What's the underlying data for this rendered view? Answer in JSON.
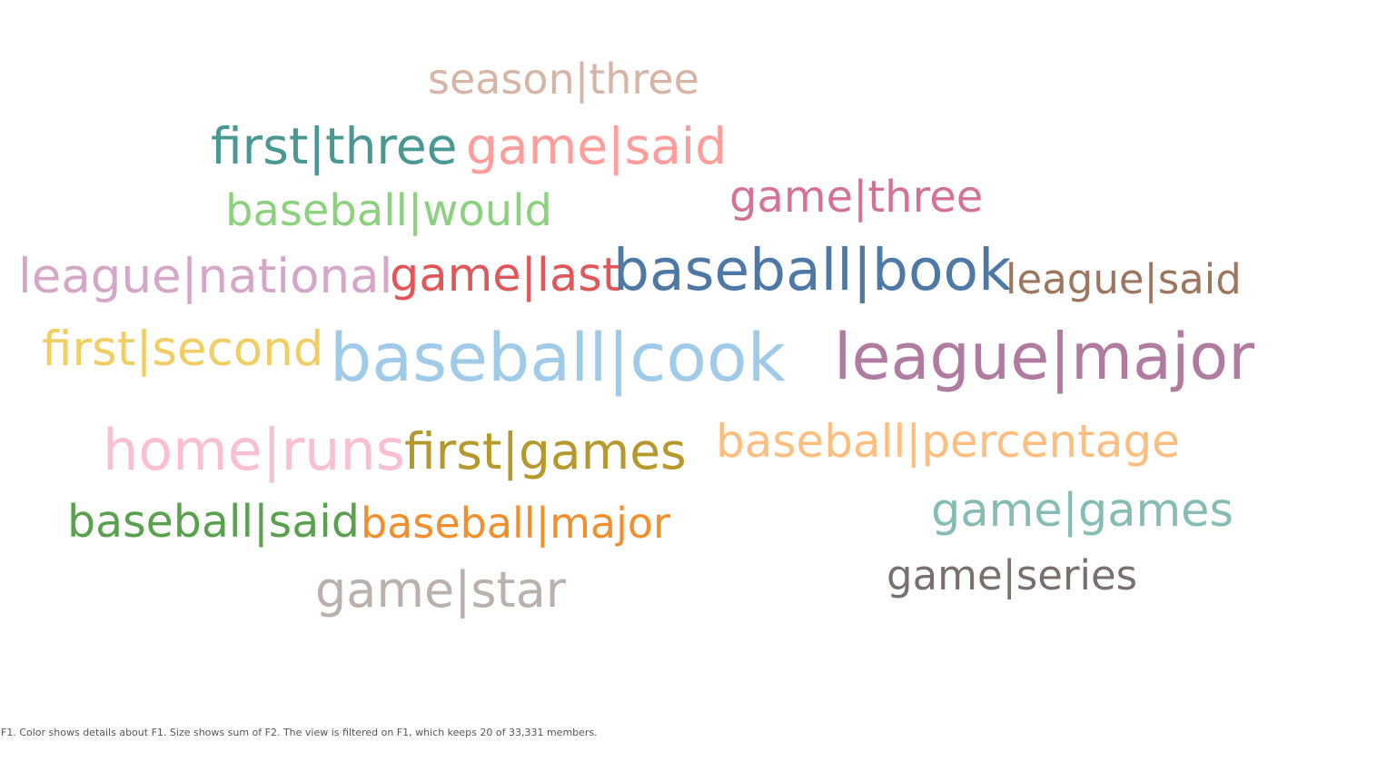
{
  "chart_data": {
    "type": "wordcloud",
    "color_field": "F1",
    "size_field": "F2",
    "words": [
      {
        "text": "season|three",
        "color": "#D7B5A6"
      },
      {
        "text": "first|three",
        "color": "#499894"
      },
      {
        "text": "game|said",
        "color": "#FF9D9A"
      },
      {
        "text": "game|three",
        "color": "#D37295"
      },
      {
        "text": "baseball|would",
        "color": "#8CD17D"
      },
      {
        "text": "league|national",
        "color": "#D4A6C8"
      },
      {
        "text": "game|last",
        "color": "#E15759"
      },
      {
        "text": "baseball|book",
        "color": "#4E79A7"
      },
      {
        "text": "league|said",
        "color": "#9D7660"
      },
      {
        "text": "first|second",
        "color": "#F1CE63"
      },
      {
        "text": "baseball|cook",
        "color": "#A0CBE8"
      },
      {
        "text": "league|major",
        "color": "#B07AA1"
      },
      {
        "text": "home|runs",
        "color": "#FABFD2"
      },
      {
        "text": "first|games",
        "color": "#B6992D"
      },
      {
        "text": "baseball|percentage",
        "color": "#FFBE7D"
      },
      {
        "text": "baseball|said",
        "color": "#59A14F"
      },
      {
        "text": "baseball|major",
        "color": "#F28E2B"
      },
      {
        "text": "game|games",
        "color": "#86BCB6"
      },
      {
        "text": "game|star",
        "color": "#BAB0AC"
      },
      {
        "text": "game|series",
        "color": "#79706E"
      }
    ]
  },
  "caption": "F1.  Color shows details about F1.  Size shows sum of F2. The view is filtered on F1, which keeps 20 of 33,331 members."
}
